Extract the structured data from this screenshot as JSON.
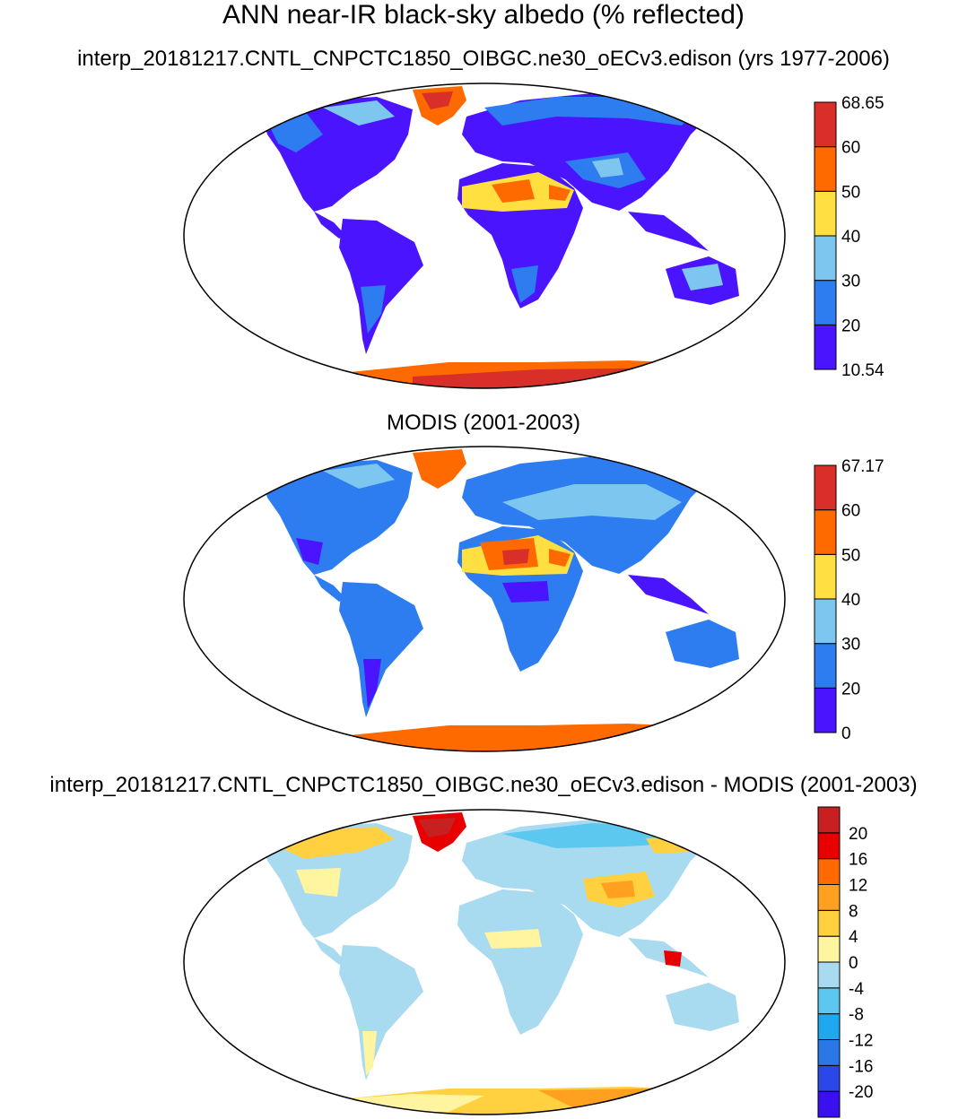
{
  "title": "ANN near-IR black-sky albedo (% reflected)",
  "panels": [
    {
      "subtitle": "interp_20181217.CNTL_CNPCTC1850_OIBGC.ne30_oECv3.edison (yrs 1977-2006)",
      "colorbar": {
        "colors": [
          "#4a14ff",
          "#2d7cf0",
          "#7cc6f0",
          "#ffe040",
          "#ff6a00",
          "#d83028"
        ],
        "labels": [
          "10.54",
          "20",
          "30",
          "40",
          "50",
          "60",
          "68.65"
        ]
      }
    },
    {
      "subtitle": "MODIS (2001-2003)",
      "colorbar": {
        "colors": [
          "#4a14ff",
          "#2d7cf0",
          "#7cc6f0",
          "#ffe040",
          "#ff6a00",
          "#d83028"
        ],
        "labels": [
          "0",
          "20",
          "30",
          "40",
          "50",
          "60",
          "67.17"
        ]
      }
    },
    {
      "subtitle": "interp_20181217.CNTL_CNPCTC1850_OIBGC.ne30_oECv3.edison - MODIS (2001-2003)",
      "colorbar": {
        "colors": [
          "#3a10f0",
          "#2a48e8",
          "#2a78e8",
          "#1ea8f0",
          "#5cc8f0",
          "#a8daf0",
          "#fff4a0",
          "#ffd040",
          "#ffa020",
          "#ff6a00",
          "#e80000",
          "#c82020"
        ],
        "labels": [
          "-20",
          "-16",
          "-12",
          "-8",
          "-4",
          "0",
          "4",
          "8",
          "12",
          "16",
          "20"
        ]
      }
    }
  ]
}
